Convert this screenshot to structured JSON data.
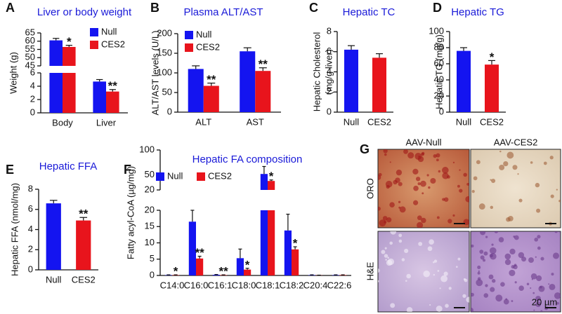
{
  "chart_data": [
    {
      "type": "bar",
      "label": "A",
      "title": "Liver or body weight",
      "ylabel": "Weight (g)",
      "categories": [
        "Body",
        "Liver"
      ],
      "series": [
        {
          "name": "Null",
          "color": "#1414f0",
          "values": [
            60.5,
            4.7
          ],
          "errors": [
            1.2,
            0.3
          ]
        },
        {
          "name": "CES2",
          "color": "#e8141c",
          "values": [
            56.5,
            3.2
          ],
          "errors": [
            1.0,
            0.3
          ]
        }
      ],
      "ylim": [
        0,
        6
      ],
      "yticks": [
        0,
        2,
        4,
        6
      ],
      "break": {
        "ylim": [
          45,
          65
        ],
        "yticks": [
          45,
          50,
          55,
          60,
          65
        ]
      },
      "legend": "upper right",
      "significance": [
        "*",
        "**"
      ]
    },
    {
      "type": "bar",
      "label": "B",
      "title": "Plasma ALT/AST",
      "ylabel": "ALT/AST levels (U/L)",
      "categories": [
        "ALT",
        "AST"
      ],
      "series": [
        {
          "name": "Null",
          "color": "#1414f0",
          "values": [
            110,
            155
          ],
          "errors": [
            8,
            9
          ]
        },
        {
          "name": "CES2",
          "color": "#e8141c",
          "values": [
            67,
            105
          ],
          "errors": [
            7,
            8
          ]
        }
      ],
      "ylim": [
        0,
        200
      ],
      "yticks": [
        0,
        50,
        100,
        150,
        200
      ],
      "legend": "upper left",
      "significance": [
        "**",
        "**"
      ]
    },
    {
      "type": "bar",
      "label": "C",
      "title": "Hepatic TC",
      "ylabel": [
        "Hepatic Cholesterol",
        "(mg/g liver)"
      ],
      "categories": [
        "Null",
        "CES2"
      ],
      "values": [
        6.2,
        5.4
      ],
      "errors": [
        0.4,
        0.4
      ],
      "colors": [
        "#1414f0",
        "#e8141c"
      ],
      "ylim": [
        0,
        8
      ],
      "yticks": [
        0,
        2,
        4,
        6,
        8
      ]
    },
    {
      "type": "bar",
      "label": "D",
      "title": "Hepatic TG",
      "ylabel": "Hepatic TG (mg/g)",
      "categories": [
        "Null",
        "CES2"
      ],
      "values": [
        76,
        59
      ],
      "errors": [
        4,
        5
      ],
      "colors": [
        "#1414f0",
        "#e8141c"
      ],
      "ylim": [
        0,
        100
      ],
      "yticks": [
        0,
        20,
        40,
        60,
        80,
        100
      ],
      "significance": [
        null,
        "*"
      ]
    },
    {
      "type": "bar",
      "label": "E",
      "title": "Hepatic FFA",
      "ylabel": "Hepatic FFA (nmol/mg)",
      "categories": [
        "Null",
        "CES2"
      ],
      "values": [
        6.6,
        4.9
      ],
      "errors": [
        0.3,
        0.3
      ],
      "colors": [
        "#1414f0",
        "#e8141c"
      ],
      "ylim": [
        0,
        8
      ],
      "yticks": [
        0,
        2,
        4,
        6,
        8
      ],
      "significance": [
        null,
        "**"
      ]
    },
    {
      "type": "bar",
      "label": "F",
      "title": "Hepatic FA composition",
      "ylabel": "Fatty acyl-CoA (µg/mg)",
      "categories": [
        "C14:0",
        "C16:0",
        "C16:1",
        "C18:0",
        "C18:1",
        "C18:2",
        "C20:4",
        "C22:6"
      ],
      "series": [
        {
          "name": "Null",
          "color": "#1414f0",
          "values": [
            0.1,
            16.5,
            0.2,
            5.3,
            52,
            13.8,
            0.1,
            0.1
          ],
          "errors": [
            0.1,
            3.5,
            0.1,
            2.8,
            15,
            5,
            0.1,
            0.1
          ]
        },
        {
          "name": "CES2",
          "color": "#e8141c",
          "values": [
            0.1,
            5.2,
            0.1,
            1.8,
            38,
            8,
            0.05,
            0.1
          ],
          "errors": [
            0.1,
            0.7,
            0.1,
            0.4,
            2,
            0.8,
            0.05,
            0.1
          ]
        }
      ],
      "ylim": [
        0,
        20
      ],
      "yticks": [
        0,
        5,
        10,
        15,
        20
      ],
      "break": {
        "ylim": [
          20,
          100
        ],
        "yticks": [
          20,
          50,
          100
        ]
      },
      "legend": "upper left",
      "significance": [
        "*",
        "**",
        "**",
        "*",
        "*",
        "*",
        null,
        null
      ]
    }
  ],
  "histology": {
    "label": "G",
    "columns": [
      "AAV-Null",
      "AAV-CES2"
    ],
    "rows": [
      "ORO",
      "H&E"
    ],
    "scale_bar": "20 µm"
  }
}
